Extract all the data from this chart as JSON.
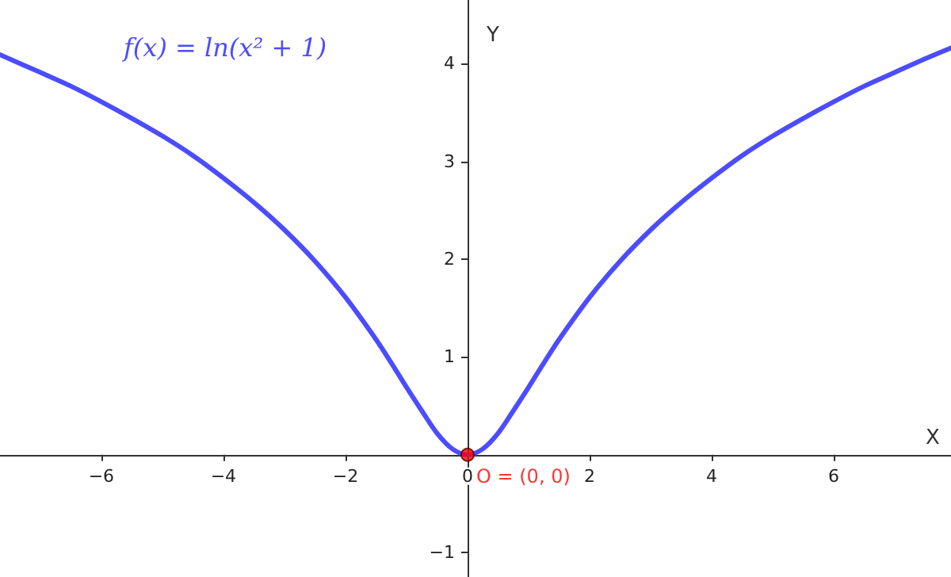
{
  "chart_data": {
    "type": "line",
    "xlabel": "X",
    "ylabel": "Y",
    "xlim": [
      -7.66,
      7.92
    ],
    "ylim": [
      -1.25,
      4.65
    ],
    "xticks": [
      {
        "value": -6,
        "label": "−6"
      },
      {
        "value": -4,
        "label": "−4"
      },
      {
        "value": -2,
        "label": "−2"
      },
      0,
      2,
      4,
      6
    ],
    "yticks": [
      {
        "value": -1,
        "label": "−1"
      },
      1,
      2,
      3,
      4
    ],
    "grid": false,
    "legend": false,
    "marker": "none",
    "line_style": "solid",
    "series": [
      {
        "name": "f(x) = ln(x² + 1)",
        "color": "#4c4cff",
        "x": [
          -7.66,
          -7,
          -6.5,
          -6,
          -5.5,
          -5,
          -4.5,
          -4,
          -3.5,
          -3,
          -2.5,
          -2,
          -1.5,
          -1.25,
          -1,
          -0.75,
          -0.5,
          -0.25,
          0,
          0.25,
          0.5,
          0.75,
          1,
          1.25,
          1.5,
          2,
          2.5,
          3,
          3.5,
          4,
          4.5,
          5,
          5.5,
          6,
          6.5,
          7,
          7.5,
          7.92
        ],
        "values": [
          4.09,
          3.91,
          3.77,
          3.61,
          3.44,
          3.26,
          3.06,
          2.83,
          2.58,
          2.3,
          1.98,
          1.61,
          1.18,
          0.94,
          0.69,
          0.45,
          0.22,
          0.06,
          0,
          0.06,
          0.22,
          0.45,
          0.69,
          0.94,
          1.18,
          1.61,
          1.98,
          2.3,
          2.58,
          2.83,
          3.06,
          3.26,
          3.44,
          3.61,
          3.77,
          3.91,
          4.05,
          4.16
        ]
      },
      {
        "type": "scatter",
        "name": "O = (0, 0)",
        "color": "#ff0000",
        "marker": "circle",
        "x": [
          0
        ],
        "values": [
          0
        ]
      }
    ]
  }
}
